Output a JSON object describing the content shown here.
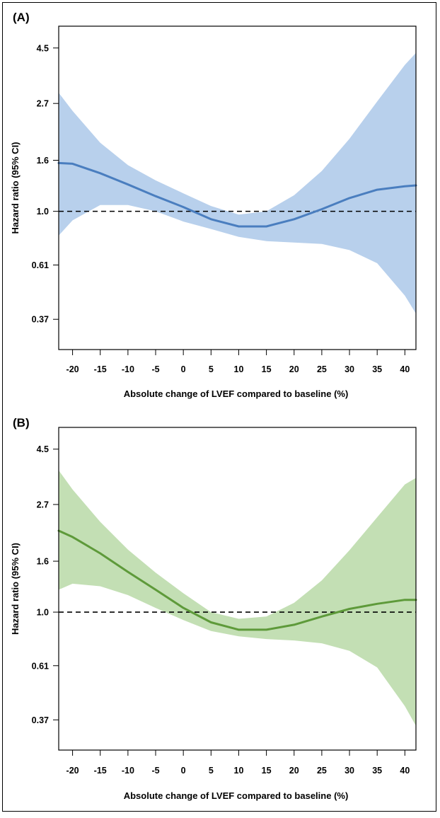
{
  "chart_data": [
    {
      "type": "line",
      "panel_label": "(A)",
      "xlabel": "Absolute change of LVEF compared to baseline (%)",
      "ylabel": "Hazard ratio (95% CI)",
      "x_ticks": [
        -20,
        -15,
        -10,
        -5,
        0,
        5,
        10,
        15,
        20,
        25,
        30,
        35,
        40
      ],
      "y_ticks": [
        0.37,
        0.61,
        1.0,
        1.6,
        2.7,
        4.5
      ],
      "y_tick_labels": [
        "0.37",
        "0.61",
        "1.0",
        "1.6",
        "2.7",
        "4.5"
      ],
      "y_scale": "log",
      "xlim": [
        -22.5,
        42
      ],
      "ylim": [
        0.28,
        5.5
      ],
      "reference_line": 1.0,
      "colors": {
        "line": "#4a7ebf",
        "band": "#b8d0ec"
      },
      "series": [
        {
          "x": [
            -22.5,
            -20,
            -15,
            -10,
            -5,
            0,
            5,
            10,
            15,
            20,
            25,
            30,
            35,
            40,
            42
          ],
          "y": [
            1.56,
            1.55,
            1.42,
            1.28,
            1.15,
            1.04,
            0.93,
            0.87,
            0.87,
            0.93,
            1.02,
            1.13,
            1.22,
            1.26,
            1.27
          ],
          "lower": [
            0.8,
            0.92,
            1.06,
            1.06,
            1.0,
            0.91,
            0.85,
            0.79,
            0.76,
            0.75,
            0.74,
            0.7,
            0.62,
            0.46,
            0.39
          ],
          "upper": [
            2.98,
            2.52,
            1.88,
            1.53,
            1.33,
            1.18,
            1.05,
            0.97,
            1.0,
            1.16,
            1.45,
            1.95,
            2.75,
            3.85,
            4.3
          ]
        }
      ]
    },
    {
      "type": "line",
      "panel_label": "(B)",
      "xlabel": "Absolute change of LVEF compared to baseline (%)",
      "ylabel": "Hazard ratio (95% CI)",
      "x_ticks": [
        -20,
        -15,
        -10,
        -5,
        0,
        5,
        10,
        15,
        20,
        25,
        30,
        35,
        40
      ],
      "y_ticks": [
        0.37,
        0.61,
        1.0,
        1.6,
        2.7,
        4.5
      ],
      "y_tick_labels": [
        "0.37",
        "0.61",
        "1.0",
        "1.6",
        "2.7",
        "4.5"
      ],
      "y_scale": "log",
      "xlim": [
        -22.5,
        42
      ],
      "ylim": [
        0.28,
        5.5
      ],
      "reference_line": 1.0,
      "colors": {
        "line": "#5e9a3a",
        "band": "#c3dfb4"
      },
      "series": [
        {
          "x": [
            -22.5,
            -20,
            -15,
            -10,
            -5,
            0,
            5,
            10,
            15,
            20,
            25,
            30,
            35,
            40,
            42
          ],
          "y": [
            2.12,
            2.0,
            1.72,
            1.45,
            1.23,
            1.04,
            0.91,
            0.85,
            0.85,
            0.89,
            0.96,
            1.03,
            1.08,
            1.12,
            1.12
          ],
          "lower": [
            1.23,
            1.3,
            1.27,
            1.17,
            1.04,
            0.93,
            0.84,
            0.8,
            0.78,
            0.77,
            0.75,
            0.7,
            0.6,
            0.42,
            0.35
          ],
          "upper": [
            3.7,
            3.1,
            2.3,
            1.78,
            1.44,
            1.19,
            1.0,
            0.94,
            0.96,
            1.09,
            1.34,
            1.77,
            2.4,
            3.25,
            3.45
          ]
        }
      ]
    }
  ]
}
